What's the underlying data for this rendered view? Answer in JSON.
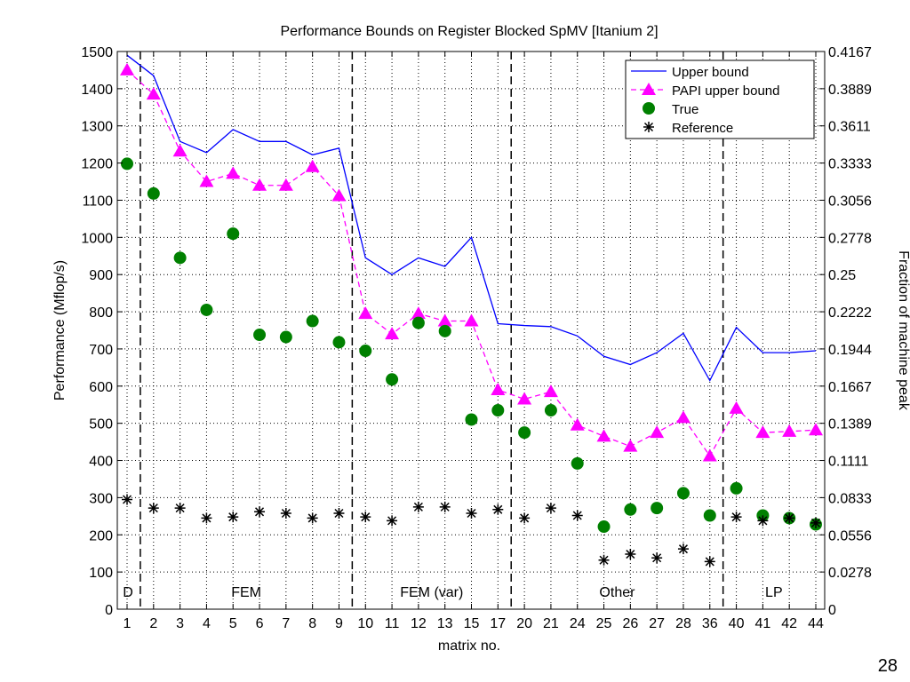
{
  "page_number": "28",
  "chart_data": {
    "type": "line",
    "title": "Performance Bounds on Register Blocked SpMV [Itanium 2]",
    "xlabel": "matrix no.",
    "ylabel": "Performance (Mflop/s)",
    "ylabel_right": "Fraction of machine peak",
    "ylim": [
      0,
      1500
    ],
    "yticks": [
      0,
      100,
      200,
      300,
      400,
      500,
      600,
      700,
      800,
      900,
      1000,
      1100,
      1200,
      1300,
      1400,
      1500
    ],
    "yticks_right": [
      "0",
      "0.0278",
      "0.0556",
      "0.0833",
      "0.1111",
      "0.1389",
      "0.1667",
      "0.1944",
      "0.2222",
      "0.25",
      "0.2778",
      "0.3056",
      "0.3333",
      "0.3611",
      "0.3889",
      "0.4167"
    ],
    "grid": true,
    "legend_position": "top-right",
    "categories": [
      "1",
      "2",
      "3",
      "4",
      "5",
      "6",
      "7",
      "8",
      "9",
      "10",
      "11",
      "12",
      "13",
      "15",
      "17",
      "20",
      "21",
      "24",
      "25",
      "26",
      "27",
      "28",
      "36",
      "40",
      "41",
      "42",
      "44"
    ],
    "groups": [
      {
        "label": "D",
        "start": 0,
        "end": 0
      },
      {
        "label": "FEM",
        "start": 1,
        "end": 8
      },
      {
        "label": "FEM (var)",
        "start": 9,
        "end": 14
      },
      {
        "label": "Other",
        "start": 15,
        "end": 22
      },
      {
        "label": "LP",
        "start": 23,
        "end": 26
      }
    ],
    "series": [
      {
        "name": "Upper bound",
        "style": "line",
        "color": "#0000ff",
        "values": [
          1490,
          1435,
          1258,
          1228,
          1290,
          1258,
          1258,
          1222,
          1240,
          945,
          900,
          945,
          922,
          1000,
          768,
          763,
          760,
          735,
          680,
          658,
          690,
          742,
          615,
          758,
          690,
          690,
          695
        ]
      },
      {
        "name": "PAPI upper bound",
        "style": "dashed-triangle",
        "color": "#ff00ff",
        "values": [
          1450,
          1385,
          1232,
          1150,
          1172,
          1140,
          1140,
          1190,
          1112,
          795,
          740,
          795,
          775,
          775,
          590,
          565,
          585,
          495,
          465,
          438,
          475,
          515,
          412,
          540,
          475,
          478,
          482
        ]
      },
      {
        "name": "True",
        "style": "circle",
        "color": "#008000",
        "values": [
          1198,
          1118,
          945,
          805,
          1010,
          738,
          732,
          775,
          718,
          695,
          618,
          770,
          748,
          510,
          535,
          475,
          535,
          392,
          222,
          268,
          272,
          312,
          252,
          325,
          252,
          245,
          228
        ]
      },
      {
        "name": "Reference",
        "style": "star",
        "color": "#000000",
        "values": [
          295,
          272,
          272,
          245,
          248,
          262,
          258,
          245,
          258,
          248,
          238,
          275,
          275,
          258,
          268,
          245,
          272,
          252,
          132,
          148,
          138,
          162,
          128,
          248,
          238,
          245,
          232
        ]
      }
    ]
  }
}
